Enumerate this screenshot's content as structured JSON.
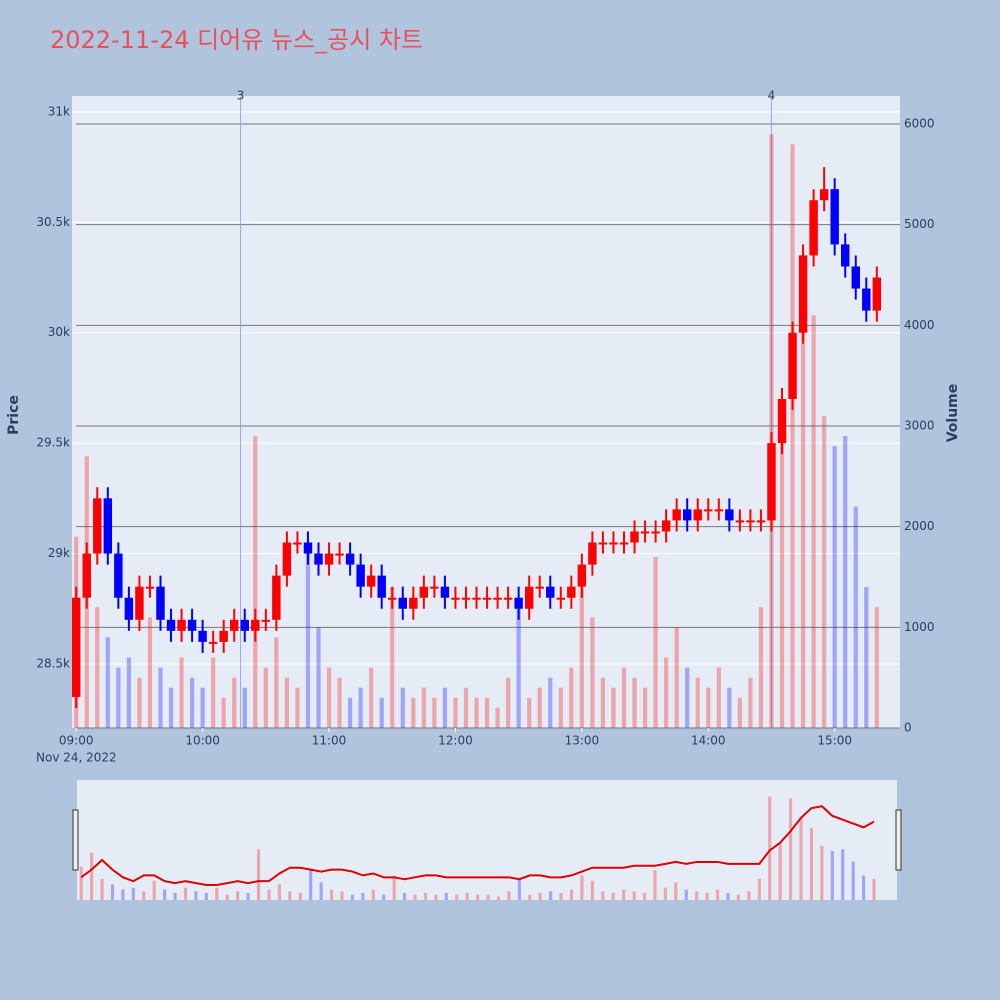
{
  "chart_data": {
    "type": "candlestick",
    "title": "2022-11-24 디어유 뉴스_공시 차트",
    "title_color": "#e8505b",
    "y_label": "Price",
    "y2_label": "Volume",
    "increasing_color": "#ff0000",
    "decreasing_color": "#0000ff",
    "x": [
      "09:00",
      "09:05",
      "09:10",
      "09:15",
      "09:20",
      "09:25",
      "09:30",
      "09:35",
      "09:40",
      "09:45",
      "09:50",
      "09:55",
      "10:00",
      "10:05",
      "10:10",
      "10:15",
      "10:20",
      "10:25",
      "10:30",
      "10:35",
      "10:40",
      "10:45",
      "10:50",
      "10:55",
      "11:00",
      "11:05",
      "11:10",
      "11:15",
      "11:20",
      "11:25",
      "11:30",
      "11:35",
      "11:40",
      "11:45",
      "11:50",
      "11:55",
      "12:00",
      "12:05",
      "12:10",
      "12:15",
      "12:20",
      "12:25",
      "12:30",
      "12:35",
      "12:40",
      "12:45",
      "12:50",
      "12:55",
      "13:00",
      "13:05",
      "13:10",
      "13:15",
      "13:20",
      "13:25",
      "13:30",
      "13:35",
      "13:40",
      "13:45",
      "13:50",
      "13:55",
      "14:00",
      "14:05",
      "14:10",
      "14:15",
      "14:20",
      "14:25",
      "14:30",
      "14:35",
      "14:40",
      "14:45",
      "14:50",
      "14:55",
      "15:00",
      "15:05",
      "15:10",
      "15:15",
      "15:20"
    ],
    "open": [
      28350,
      28800,
      29000,
      29250,
      29000,
      28800,
      28700,
      28850,
      28850,
      28700,
      28650,
      28700,
      28650,
      28600,
      28600,
      28650,
      28700,
      28650,
      28700,
      28700,
      28900,
      29050,
      29050,
      29000,
      28950,
      29000,
      29000,
      28950,
      28850,
      28900,
      28800,
      28800,
      28750,
      28800,
      28850,
      28850,
      28800,
      28800,
      28800,
      28800,
      28800,
      28800,
      28800,
      28750,
      28850,
      28850,
      28800,
      28800,
      28850,
      28950,
      29050,
      29050,
      29050,
      29050,
      29100,
      29100,
      29100,
      29150,
      29200,
      29150,
      29200,
      29200,
      29200,
      29150,
      29150,
      29150,
      29150,
      29500,
      29700,
      30000,
      30350,
      30600,
      30650,
      30400,
      30300,
      30200,
      30100
    ],
    "high": [
      28850,
      29050,
      29300,
      29300,
      29050,
      28850,
      28900,
      28900,
      28900,
      28750,
      28750,
      28750,
      28700,
      28650,
      28700,
      28750,
      28750,
      28750,
      28750,
      28950,
      29100,
      29100,
      29100,
      29050,
      29050,
      29050,
      29050,
      29000,
      28950,
      28950,
      28850,
      28850,
      28850,
      28900,
      28900,
      28900,
      28850,
      28850,
      28850,
      28850,
      28850,
      28850,
      28850,
      28900,
      28900,
      28900,
      28850,
      28900,
      29000,
      29100,
      29100,
      29100,
      29100,
      29150,
      29150,
      29150,
      29200,
      29250,
      29250,
      29250,
      29250,
      29250,
      29250,
      29200,
      29200,
      29200,
      29550,
      29750,
      30050,
      30400,
      30650,
      30750,
      30700,
      30450,
      30350,
      30250,
      30300
    ],
    "low": [
      28300,
      28750,
      28950,
      28950,
      28750,
      28650,
      28650,
      28800,
      28650,
      28600,
      28600,
      28600,
      28550,
      28550,
      28550,
      28600,
      28600,
      28600,
      28650,
      28650,
      28850,
      29000,
      28950,
      28900,
      28900,
      28950,
      28900,
      28800,
      28800,
      28750,
      28750,
      28700,
      28700,
      28750,
      28800,
      28750,
      28750,
      28750,
      28750,
      28750,
      28750,
      28750,
      28700,
      28700,
      28800,
      28750,
      28750,
      28750,
      28800,
      28900,
      29000,
      29000,
      29000,
      29000,
      29050,
      29050,
      29050,
      29100,
      29100,
      29100,
      29150,
      29150,
      29100,
      29100,
      29100,
      29100,
      29100,
      29450,
      29650,
      29950,
      30300,
      30550,
      30350,
      30250,
      30150,
      30050,
      30050
    ],
    "close": [
      28800,
      29000,
      29250,
      29000,
      28800,
      28700,
      28850,
      28850,
      28700,
      28650,
      28700,
      28650,
      28600,
      28600,
      28650,
      28700,
      28650,
      28700,
      28700,
      28900,
      29050,
      29050,
      29000,
      28950,
      29000,
      29000,
      28950,
      28850,
      28900,
      28800,
      28800,
      28750,
      28800,
      28850,
      28850,
      28800,
      28800,
      28800,
      28800,
      28800,
      28800,
      28800,
      28750,
      28850,
      28850,
      28800,
      28800,
      28850,
      28950,
      29050,
      29050,
      29050,
      29050,
      29100,
      29100,
      29100,
      29150,
      29200,
      29150,
      29200,
      29200,
      29200,
      29150,
      29150,
      29150,
      29150,
      29500,
      29700,
      30000,
      30350,
      30600,
      30650,
      30400,
      30300,
      30200,
      30100,
      30250
    ],
    "volume": [
      1900,
      2700,
      1200,
      900,
      600,
      700,
      500,
      1100,
      600,
      400,
      700,
      500,
      400,
      700,
      300,
      500,
      400,
      2900,
      600,
      900,
      500,
      400,
      1800,
      1000,
      600,
      500,
      300,
      400,
      600,
      300,
      1400,
      400,
      300,
      400,
      300,
      400,
      300,
      400,
      300,
      300,
      200,
      500,
      1200,
      300,
      400,
      500,
      400,
      600,
      1400,
      1100,
      500,
      400,
      600,
      500,
      400,
      1700,
      700,
      1000,
      600,
      500,
      400,
      600,
      400,
      300,
      500,
      1200,
      5900,
      3200,
      5800,
      4700,
      4100,
      3100,
      2800,
      2900,
      2200,
      1400,
      1200
    ],
    "xlim": [
      "08:58",
      "15:31"
    ],
    "xticks": [
      "09:00",
      "10:00",
      "11:00",
      "12:00",
      "13:00",
      "14:00",
      "15:00"
    ],
    "x_date": "Nov 24, 2022",
    "ylim": [
      28210,
      31072
    ],
    "yticks": [
      {
        "value": 28500,
        "label": "28.5k"
      },
      {
        "value": 29000,
        "label": "29k"
      },
      {
        "value": 29500,
        "label": "29.5k"
      },
      {
        "value": 30000,
        "label": "30k"
      },
      {
        "value": 30500,
        "label": "30.5k"
      },
      {
        "value": 31000,
        "label": "31k"
      }
    ],
    "y2lim": [
      0,
      6278
    ],
    "y2ticks": [
      0,
      1000,
      2000,
      3000,
      4000,
      5000,
      6000
    ],
    "annotations": [
      {
        "x": "10:18",
        "text": "3"
      },
      {
        "x": "14:30",
        "text": "4"
      }
    ],
    "grid": true
  }
}
